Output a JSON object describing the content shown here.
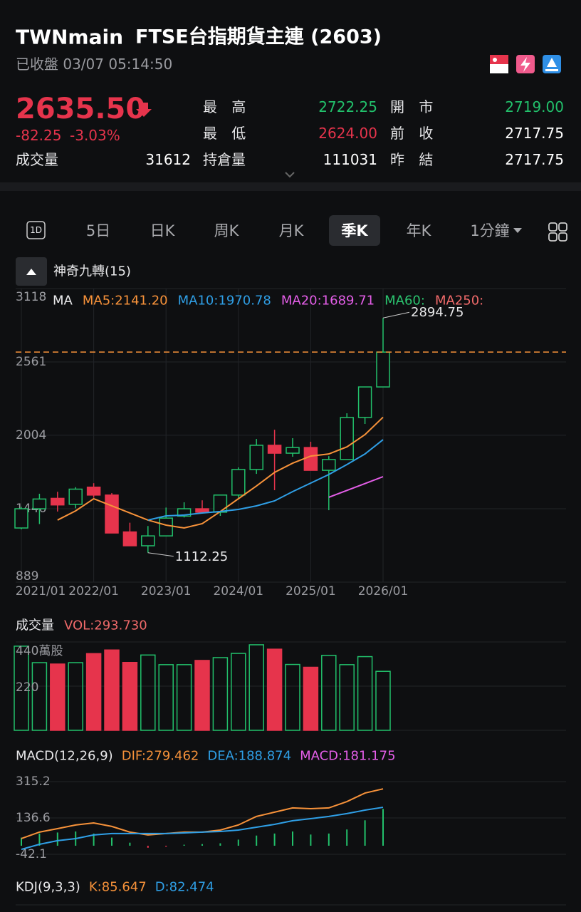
{
  "header": {
    "symbol": "TWNmain",
    "name": "FTSE台指期貨主連 (2603)",
    "status": "已收盤 03/07 05:14:50"
  },
  "quote": {
    "price": "2635.50",
    "change": "-82.25",
    "change_pct": "-3.03%",
    "stats": [
      {
        "label": "最 高",
        "value": "2722.25",
        "color": "#22c06b"
      },
      {
        "label": "開 市",
        "value": "2719.00",
        "color": "#22c06b"
      },
      {
        "label": "最 低",
        "value": "2624.00",
        "color": "#e6344c"
      },
      {
        "label": "前 收",
        "value": "2717.75",
        "color": "#ffffff"
      },
      {
        "label": "成交量",
        "value": "31612",
        "color": "#ffffff"
      },
      {
        "label": "持倉量",
        "value": "111031",
        "color": "#ffffff"
      },
      {
        "label": "昨 結",
        "value": "2717.75",
        "color": "#ffffff"
      }
    ]
  },
  "tabs": {
    "icon": "1D",
    "items": [
      "5日",
      "日K",
      "周K",
      "月K",
      "季K",
      "年K",
      "1分鐘"
    ],
    "active": 4
  },
  "indicator": "神奇九轉(15)",
  "chart": {
    "type": "candlestick",
    "up_color": "#22c06b",
    "down_color": "#e6344c",
    "categories": [
      "2021/01",
      null,
      null,
      null,
      "2022/01",
      null,
      null,
      null,
      "2023/01",
      null,
      null,
      null,
      "2024/01",
      null,
      null,
      null,
      "2025/01",
      null,
      null,
      null,
      "2026/01"
    ],
    "open": [
      1300,
      1446,
      1525,
      1480,
      1610,
      1550,
      1270,
      1165,
      1240,
      1390,
      1446,
      1420,
      1550,
      1744,
      1928,
      1868,
      1911,
      1738,
      1820,
      2139,
      2371
    ],
    "high": [
      1460,
      1560,
      1575,
      1610,
      1640,
      1565,
      1340,
      1315,
      1455,
      1495,
      1510,
      1550,
      1760,
      1976,
      2046,
      1982,
      1955,
      1846,
      2171,
      2371,
      2894.75
    ],
    "low": [
      1290,
      1330,
      1425,
      1450,
      1530,
      1262,
      1165,
      1112.25,
      1240,
      1380,
      1415,
      1392,
      1530,
      1711,
      1587,
      1841,
      1738,
      1435,
      1820,
      2090,
      2371
    ],
    "close": [
      1446,
      1520,
      1475,
      1595,
      1550,
      1262,
      1165,
      1240,
      1375,
      1446,
      1420,
      1550,
      1744,
      1928,
      1868,
      1911,
      1738,
      1820,
      2139,
      2371,
      2635.5
    ],
    "ma_label": "MA",
    "ma": [
      {
        "name": "MA5:2141.20",
        "color": "#f7923a",
        "values": [
          null,
          null,
          1360,
          1430,
          1522,
          1468,
          1414,
          1360,
          1322,
          1300,
          1333,
          1425,
          1522,
          1619,
          1722,
          1792,
          1846,
          1862,
          1916,
          2009,
          2141.2
        ]
      },
      {
        "name": "MA10:1970.78",
        "color": "#2f9fe6",
        "values": [
          null,
          null,
          null,
          null,
          null,
          null,
          null,
          1360,
          1392,
          1398,
          1414,
          1425,
          1441,
          1468,
          1506,
          1576,
          1641,
          1706,
          1782,
          1862,
          1970.78
        ]
      },
      {
        "name": "MA20:1689.71",
        "color": "#e45ee8",
        "values": [
          null,
          null,
          null,
          null,
          null,
          null,
          null,
          null,
          null,
          null,
          null,
          null,
          null,
          null,
          null,
          null,
          null,
          1533,
          1585,
          1637,
          1689.71
        ]
      },
      {
        "name": "MA60:",
        "color": "#2bc46f",
        "values": [
          null,
          null,
          null,
          null,
          null,
          null,
          null,
          null,
          null,
          null,
          null,
          null,
          null,
          null,
          null,
          null,
          null,
          null,
          null,
          null,
          null
        ]
      },
      {
        "name": "MA250:",
        "color": "#f06a6a",
        "values": [
          null,
          null,
          null,
          null,
          null,
          null,
          null,
          null,
          null,
          null,
          null,
          null,
          null,
          null,
          null,
          null,
          null,
          null,
          null,
          null,
          null
        ]
      }
    ],
    "ylim": [
      889,
      3118
    ],
    "yticks": [
      3118,
      2561,
      2004,
      1446,
      889
    ],
    "high_label": "2894.75",
    "low_label": "1112.25"
  },
  "volume": {
    "title": "成交量",
    "legend": "VOL:293.730",
    "values": [
      419,
      337,
      330,
      337,
      382,
      400,
      338,
      375,
      327,
      327,
      348,
      362,
      383,
      426,
      404,
      328,
      314,
      373,
      327,
      367,
      293.73
    ],
    "ylim": [
      0,
      440
    ],
    "yticks": [
      {
        "value": 440,
        "label": "440萬股"
      },
      220
    ]
  },
  "macd": {
    "title": "MACD(12,26,9)",
    "legend": [
      {
        "text": "DIF:279.462",
        "color": "#f7923a"
      },
      {
        "text": "DEA:188.874",
        "color": "#2f9fe6"
      },
      {
        "text": "MACD:181.175",
        "color": "#e45ee8"
      }
    ],
    "dif": [
      35,
      67,
      84,
      102,
      112,
      95,
      67,
      53,
      60,
      67,
      67,
      77,
      102,
      144,
      165,
      186,
      182,
      186,
      217,
      259,
      279.462
    ],
    "dea": [
      -18,
      7,
      25,
      35,
      53,
      60,
      60,
      60,
      60,
      63,
      67,
      70,
      77,
      91,
      105,
      123,
      133,
      144,
      158,
      175,
      188.874
    ],
    "hist": [
      40,
      60,
      65,
      70,
      60,
      40,
      15,
      -10,
      -5,
      5,
      8,
      12,
      30,
      50,
      60,
      70,
      55,
      60,
      80,
      125,
      181.175
    ],
    "ylim": [
      -42.1,
      315.2
    ],
    "yticks": [
      315.2,
      136.6,
      -42.1
    ]
  },
  "kdj": {
    "title": "KDJ(9,3,3)",
    "legend": [
      {
        "text": "K:85.647",
        "color": "#f7923a"
      },
      {
        "text": "D:82.474",
        "color": "#2f9fe6"
      }
    ]
  }
}
